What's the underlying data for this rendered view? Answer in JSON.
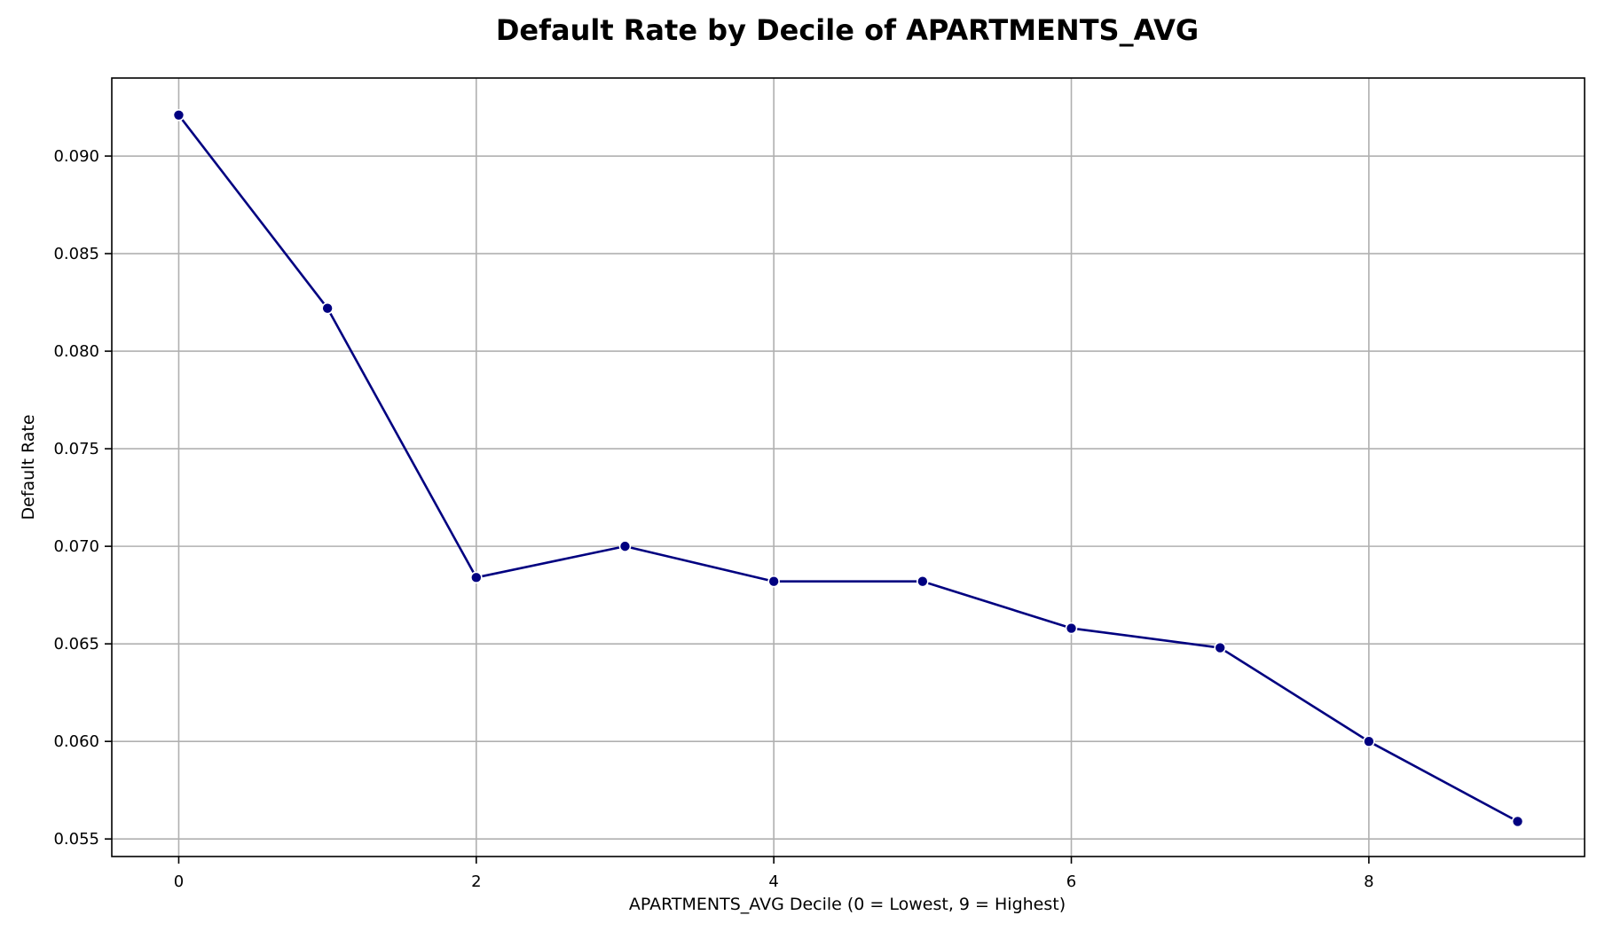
{
  "chart_data": {
    "type": "line",
    "title": "Default Rate by Decile of APARTMENTS_AVG",
    "xlabel": "APARTMENTS_AVG Decile (0 = Lowest, 9 = Highest)",
    "ylabel": "Default Rate",
    "x": [
      0,
      1,
      2,
      3,
      4,
      5,
      6,
      7,
      8,
      9
    ],
    "series": [
      {
        "values": [
          0.0921,
          0.0822,
          0.0684,
          0.07,
          0.0682,
          0.0682,
          0.0658,
          0.0648,
          0.06,
          0.0559
        ]
      }
    ],
    "xticks": [
      0,
      2,
      4,
      6,
      8
    ],
    "xtick_labels": [
      "0",
      "2",
      "4",
      "6",
      "8"
    ],
    "yticks": [
      0.055,
      0.06,
      0.065,
      0.07,
      0.075,
      0.08,
      0.085,
      0.09
    ],
    "ytick_labels": [
      "0.055",
      "0.060",
      "0.065",
      "0.070",
      "0.075",
      "0.080",
      "0.085",
      "0.090"
    ],
    "xlim": [
      -0.45,
      9.45
    ],
    "ylim": [
      0.0541,
      0.094
    ],
    "grid": true,
    "line_color": "#000080",
    "marker_color": "#000080",
    "marker_edge_color": "#ffffff",
    "grid_color": "#b0b0b0",
    "axis_color": "#000000"
  }
}
